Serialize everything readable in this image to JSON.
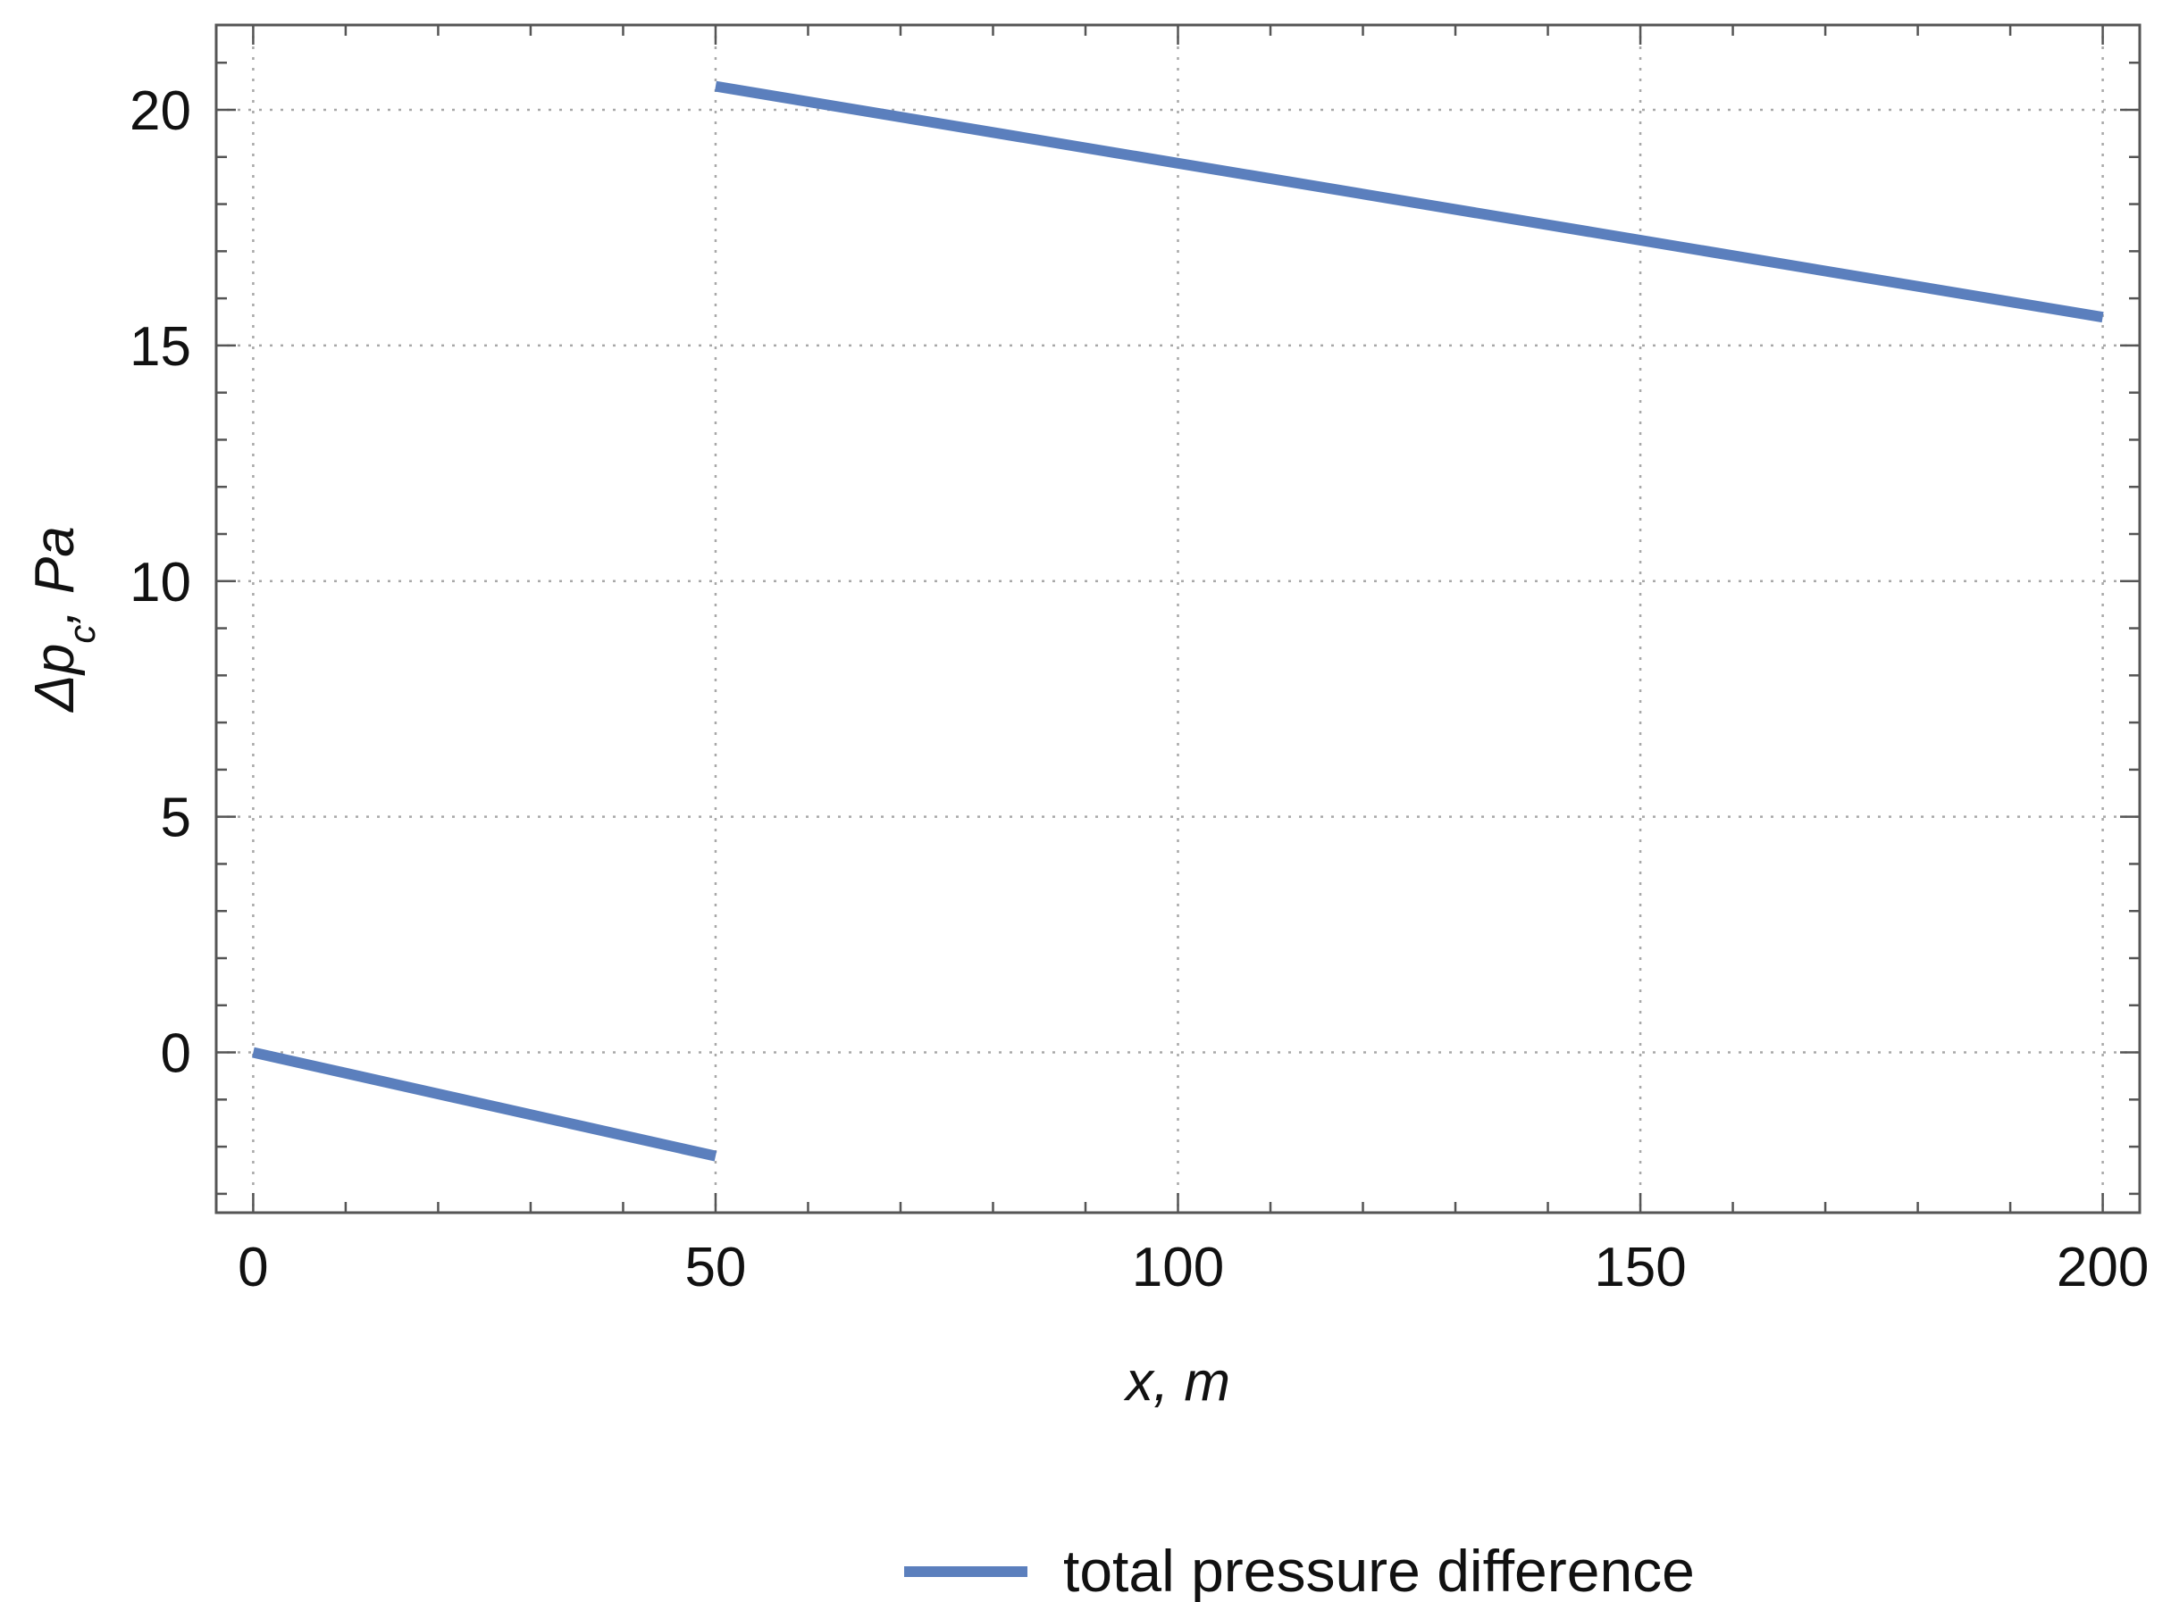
{
  "chart_data": {
    "type": "line",
    "title": "",
    "xlabel": "x, m",
    "ylabel_main": "Δp",
    "ylabel_sub": "c",
    "ylabel_unit": "Pa",
    "xlim": [
      -4,
      204
    ],
    "ylim": [
      -3.4,
      21.8
    ],
    "x_ticks": [
      0,
      50,
      100,
      150,
      200
    ],
    "y_ticks": [
      0,
      5,
      10,
      15,
      20
    ],
    "x_minor_step": 10,
    "y_minor_step": 1,
    "grid": true,
    "legend_position": "bottom-center",
    "series": [
      {
        "name": "total pressure difference",
        "color": "#5b7fbd",
        "segments": [
          [
            [
              0,
              0.0
            ],
            [
              50,
              -2.2
            ]
          ],
          [
            [
              50,
              20.5
            ],
            [
              200,
              15.6
            ]
          ]
        ]
      }
    ]
  }
}
